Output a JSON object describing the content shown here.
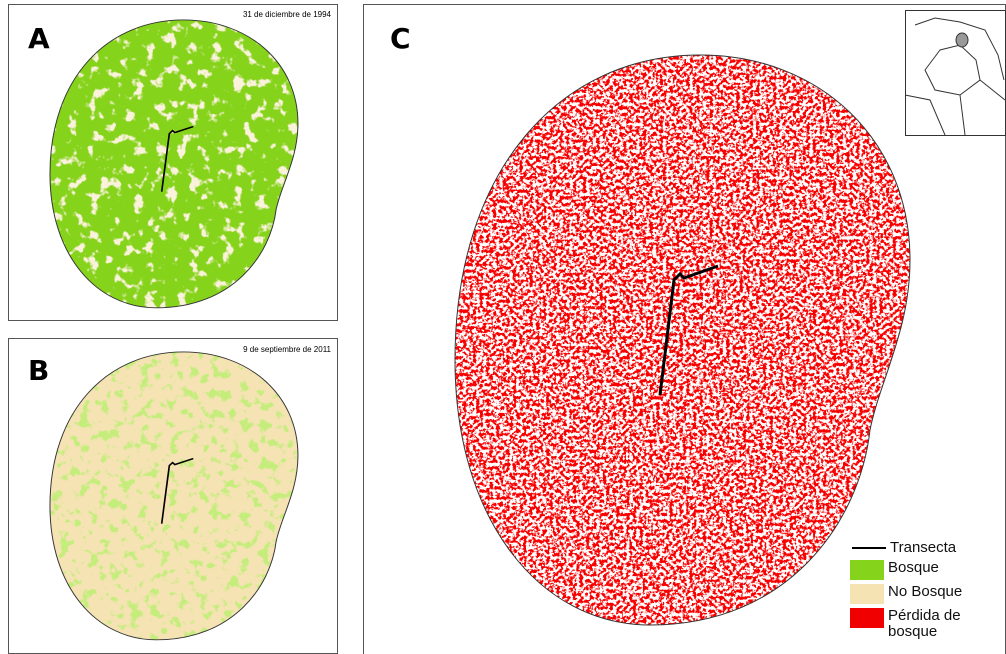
{
  "panels": [
    {
      "label": "A",
      "date": "31 de diciembre de 1994"
    },
    {
      "label": "B",
      "date": "9 de septiembre de 2011"
    },
    {
      "label": "C"
    }
  ],
  "legend": [
    {
      "label": "Transecta"
    },
    {
      "label": "Bosque"
    },
    {
      "label": "No Bosque"
    },
    {
      "label": "Pérdida de bosque"
    }
  ]
}
